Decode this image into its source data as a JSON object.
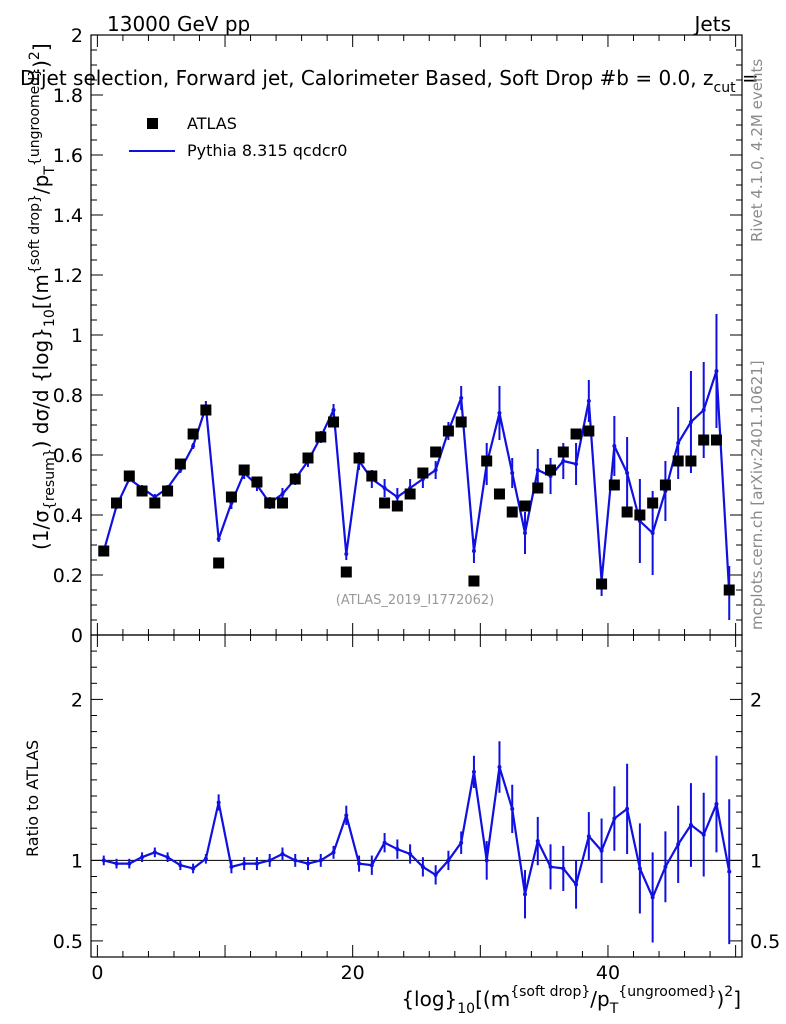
{
  "header": {
    "energy": "13000 GeV pp",
    "process": "Jets",
    "title": "Dijet selection, Forward jet, Calorimeter Based, Soft Drop #b = 0.0, z",
    "title_sub": "cut",
    "title_tail": " ="
  },
  "side": {
    "rivet": "Rivet 4.1.0,  4.2M events",
    "mcplots": "mcplots.cern.ch [arXiv:2401.10621]"
  },
  "analysis_id": "(ATLAS_2019_I1772062)",
  "main_ylabel": {
    "p1": "(1/σ",
    "p1_sub": "{resum}",
    "p2": ") dσ/d {log}",
    "p2_sub": "10",
    "p3": "[(m",
    "p3_sup": "{soft drop}",
    "p4": "/p",
    "p4_sub": "T",
    "p4_sup": "{ungroomed}",
    "p5": ")",
    "p5_sup": "2",
    "p6": "]"
  },
  "ratio_ylabel": "Ratio to ATLAS",
  "xlabel": {
    "p1": "{log}",
    "p1_sub": "10",
    "p2": "[(m",
    "p2_sup": "{soft drop}",
    "p3": "/p",
    "p3_sub": "T",
    "p3_sup": "{ungroomed}",
    "p4": ")",
    "p4_sup": "2",
    "p5": "]"
  },
  "legend": {
    "data_label": "ATLAS",
    "mc_label": "Pythia 8.315 qcdcr0"
  },
  "colors": {
    "data": "#000000",
    "mc": "#1010e0",
    "side_text": "#8a8a8a"
  },
  "chart_data": {
    "type": "scatter+line",
    "x_range": [
      -0.5,
      50.5
    ],
    "main_y_range": [
      0,
      2
    ],
    "ratio_y_range": [
      0.4,
      2.4
    ],
    "main_y_ticks": [
      0,
      0.2,
      0.4,
      0.6,
      0.8,
      1,
      1.2,
      1.4,
      1.6,
      1.8,
      2
    ],
    "main_y_tick_labels": [
      "0",
      "0.2",
      "0.4",
      "0.6",
      "0.8",
      "1",
      "1.2",
      "1.4",
      "1.6",
      "1.8",
      "2"
    ],
    "ratio_y_ticks": [
      0.5,
      1,
      2
    ],
    "ratio_y_tick_labels": [
      "0.5",
      "1",
      "2"
    ],
    "x_ticks": [
      0,
      20,
      40
    ],
    "x_tick_labels": [
      "0",
      "20",
      "40"
    ],
    "x": [
      0.5,
      1.5,
      2.5,
      3.5,
      4.5,
      5.5,
      6.5,
      7.5,
      8.5,
      9.5,
      10.5,
      11.5,
      12.5,
      13.5,
      14.5,
      15.5,
      16.5,
      17.5,
      18.5,
      19.5,
      20.5,
      21.5,
      22.5,
      23.5,
      24.5,
      25.5,
      26.5,
      27.5,
      28.5,
      29.5,
      30.5,
      31.5,
      32.5,
      33.5,
      34.5,
      35.5,
      36.5,
      37.5,
      38.5,
      39.5,
      40.5,
      41.5,
      42.5,
      43.5,
      44.5,
      45.5,
      46.5,
      47.5,
      48.5,
      49.5
    ],
    "series": [
      {
        "name": "ATLAS",
        "style": "markers",
        "values": [
          0.28,
          0.44,
          0.53,
          0.48,
          0.44,
          0.48,
          0.57,
          0.67,
          0.75,
          0.24,
          0.46,
          0.55,
          0.51,
          0.44,
          0.44,
          0.52,
          0.59,
          0.66,
          0.71,
          0.21,
          0.59,
          0.53,
          0.44,
          0.43,
          0.47,
          0.54,
          0.61,
          0.68,
          0.71,
          0.18,
          0.58,
          0.47,
          0.41,
          0.43,
          0.49,
          0.55,
          0.61,
          0.67,
          0.68,
          0.17,
          0.5,
          0.41,
          0.4,
          0.44,
          0.5,
          0.58,
          0.58,
          0.65,
          0.65,
          0.15
        ]
      },
      {
        "name": "Pythia 8.315 qcdcr0",
        "style": "line",
        "values": [
          0.28,
          0.43,
          0.52,
          0.49,
          0.46,
          0.49,
          0.55,
          0.63,
          0.76,
          0.32,
          0.44,
          0.54,
          0.5,
          0.44,
          0.47,
          0.52,
          0.58,
          0.66,
          0.75,
          0.27,
          0.58,
          0.52,
          0.49,
          0.46,
          0.49,
          0.52,
          0.55,
          0.68,
          0.79,
          0.28,
          0.57,
          0.74,
          0.54,
          0.34,
          0.55,
          0.53,
          0.58,
          0.57,
          0.78,
          0.18,
          0.63,
          0.54,
          0.38,
          0.34,
          0.48,
          0.64,
          0.71,
          0.75,
          0.88,
          0.14
        ],
        "errors": [
          0.01,
          0.01,
          0.01,
          0.01,
          0.01,
          0.01,
          0.01,
          0.01,
          0.02,
          0.01,
          0.02,
          0.02,
          0.02,
          0.02,
          0.02,
          0.02,
          0.02,
          0.02,
          0.02,
          0.02,
          0.03,
          0.03,
          0.03,
          0.03,
          0.03,
          0.03,
          0.03,
          0.03,
          0.04,
          0.04,
          0.07,
          0.09,
          0.05,
          0.07,
          0.07,
          0.06,
          0.06,
          0.07,
          0.07,
          0.05,
          0.1,
          0.12,
          0.14,
          0.14,
          0.1,
          0.12,
          0.17,
          0.16,
          0.19,
          0.09
        ]
      },
      {
        "name": "Ratio Pythia/ATLAS",
        "style": "ratio-line",
        "values": [
          1.0,
          0.98,
          0.98,
          1.02,
          1.05,
          1.02,
          0.97,
          0.95,
          1.01,
          1.36,
          0.96,
          0.98,
          0.98,
          1.0,
          1.04,
          1.0,
          0.98,
          1.0,
          1.05,
          1.28,
          0.98,
          0.97,
          1.11,
          1.07,
          1.04,
          0.96,
          0.91,
          1.0,
          1.11,
          1.55,
          1.0,
          1.58,
          1.32,
          0.79,
          1.12,
          0.96,
          0.95,
          0.85,
          1.15,
          1.06,
          1.26,
          1.32,
          0.95,
          0.77,
          0.96,
          1.1,
          1.22,
          1.16,
          1.35,
          0.93
        ],
        "errors": [
          0.03,
          0.03,
          0.03,
          0.03,
          0.03,
          0.03,
          0.03,
          0.03,
          0.03,
          0.05,
          0.04,
          0.04,
          0.04,
          0.04,
          0.04,
          0.04,
          0.04,
          0.04,
          0.04,
          0.06,
          0.05,
          0.06,
          0.06,
          0.06,
          0.06,
          0.06,
          0.06,
          0.06,
          0.07,
          0.1,
          0.12,
          0.16,
          0.15,
          0.15,
          0.15,
          0.14,
          0.14,
          0.15,
          0.15,
          0.2,
          0.2,
          0.28,
          0.28,
          0.28,
          0.22,
          0.24,
          0.26,
          0.26,
          0.3,
          0.45
        ]
      }
    ]
  }
}
